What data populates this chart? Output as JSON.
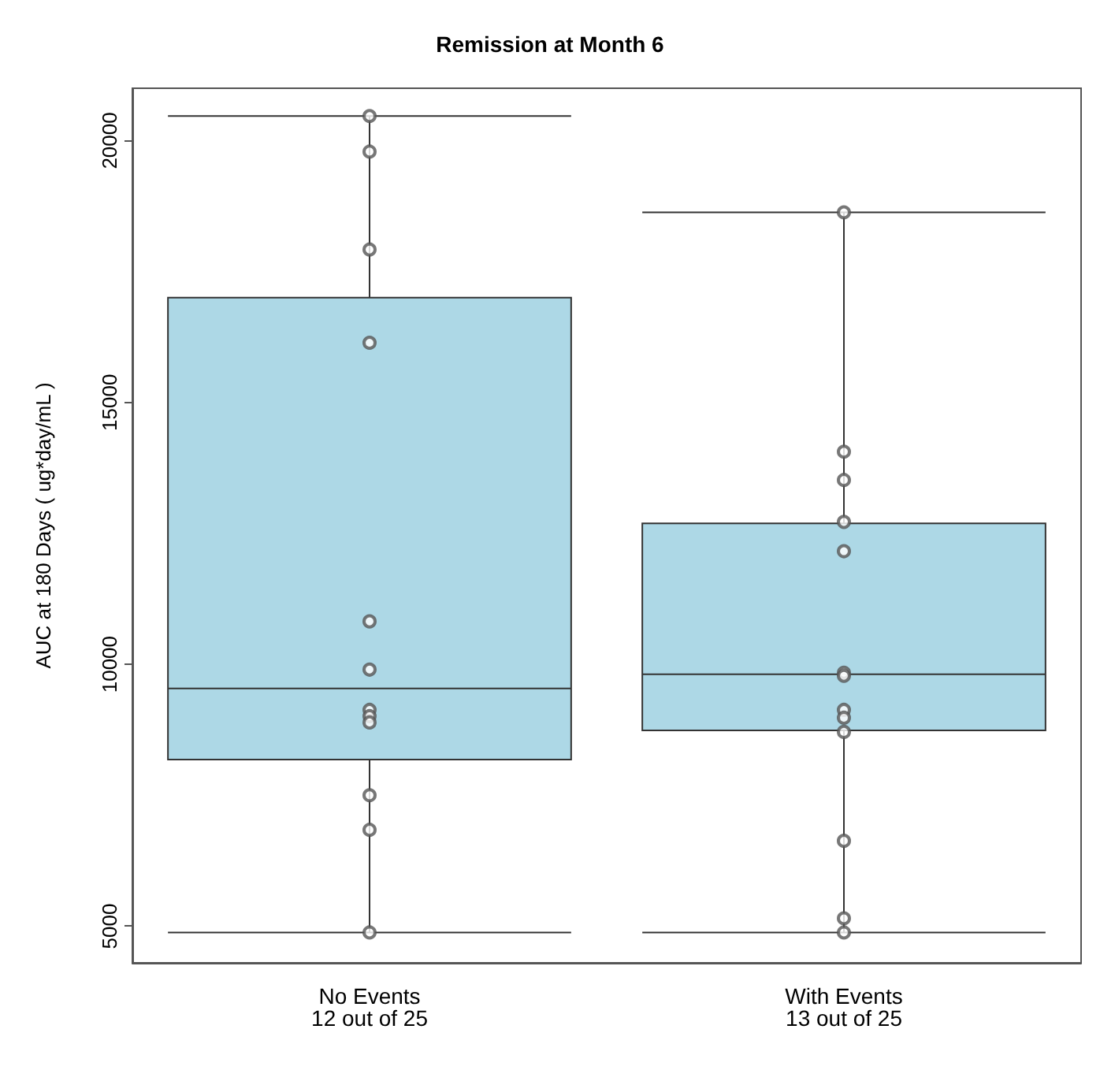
{
  "chart_data": {
    "type": "box",
    "title": "Remission at Month 6",
    "ylabel": "AUC at 180 Days ( ug*day/mL )",
    "categories": [
      "No Events\n12 out of 25",
      "With Events\n13 out of 25"
    ],
    "color": "#add8e6",
    "boxes": [
      {
        "low": 4880,
        "q1": 8180,
        "median": 9540,
        "q3": 17000,
        "high": 20470
      },
      {
        "low": 4880,
        "q1": 8740,
        "median": 9810,
        "q3": 12690,
        "high": 18630
      }
    ],
    "series": [
      {
        "type": "scatter",
        "color": "#555555",
        "x": [
          "No Events\n12 out of 25",
          "No Events\n12 out of 25",
          "No Events\n12 out of 25",
          "No Events\n12 out of 25",
          "No Events\n12 out of 25",
          "No Events\n12 out of 25",
          "No Events\n12 out of 25",
          "No Events\n12 out of 25",
          "No Events\n12 out of 25",
          "No Events\n12 out of 25",
          "No Events\n12 out of 25",
          "No Events\n12 out of 25"
        ],
        "values": [
          20470,
          19790,
          17920,
          16140,
          10820,
          9900,
          9130,
          9010,
          8890,
          7500,
          6840,
          4880
        ]
      },
      {
        "type": "scatter",
        "color": "#555555",
        "x": [
          "With Events\n13 out of 25",
          "With Events\n13 out of 25",
          "With Events\n13 out of 25",
          "With Events\n13 out of 25",
          "With Events\n13 out of 25",
          "With Events\n13 out of 25",
          "With Events\n13 out of 25",
          "With Events\n13 out of 25",
          "With Events\n13 out of 25",
          "With Events\n13 out of 25",
          "With Events\n13 out of 25",
          "With Events\n13 out of 25",
          "With Events\n13 out of 25"
        ],
        "values": [
          18630,
          14060,
          13520,
          12720,
          12160,
          9840,
          9780,
          9130,
          8980,
          8710,
          6630,
          5150,
          4880
        ]
      }
    ],
    "ylim": [
      4300,
      21000
    ],
    "yticks": [
      5000,
      10000,
      15000,
      20000
    ],
    "grid": false,
    "marker": "circle"
  }
}
